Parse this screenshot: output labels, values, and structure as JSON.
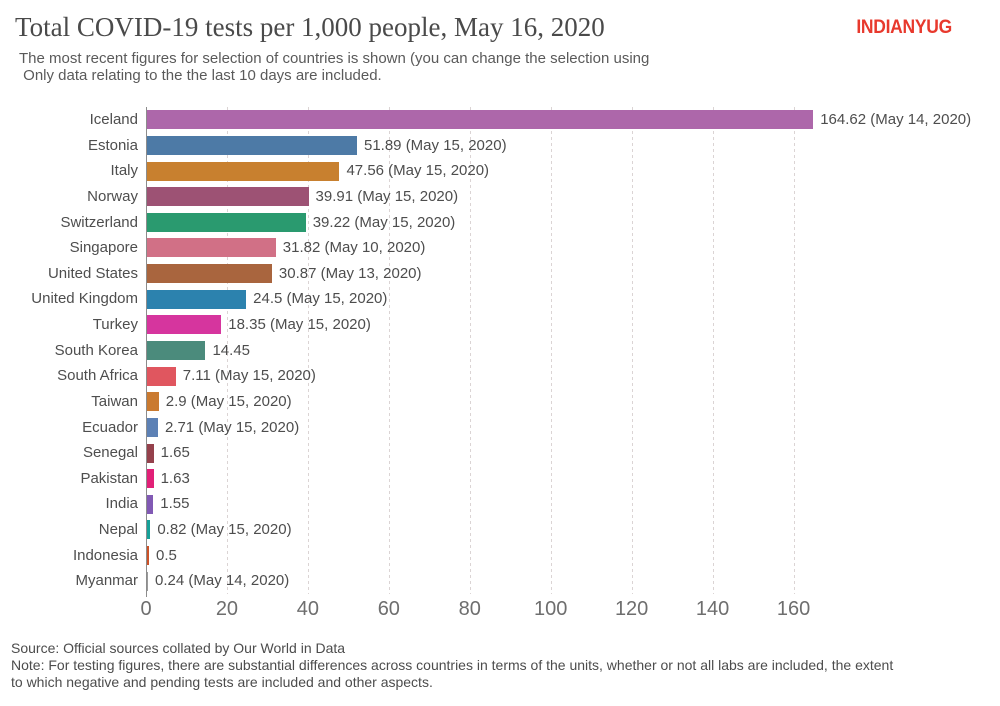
{
  "header": {
    "title": "Total COVID-19 tests per 1,000 people, May 16, 2020",
    "subtitle_line1": "The most recent figures for selection of countries is shown (you can change the selection using",
    "subtitle_line2": " Only data relating to the the last 10 days are included.",
    "logo_text": "INDIANYUG",
    "logo_color": "#e8392d"
  },
  "chart_data": {
    "type": "bar",
    "orientation": "horizontal",
    "title": "Total COVID-19 tests per 1,000 people, May 16, 2020",
    "xlabel": "",
    "ylabel": "",
    "xlim": [
      0,
      210
    ],
    "x_ticks": [
      0,
      20,
      40,
      60,
      80,
      100,
      120,
      140,
      160
    ],
    "grid": "vertical-dashed",
    "legend": "none",
    "bars": [
      {
        "country": "Iceland",
        "value": 164.62,
        "label": "164.62 (May 14, 2020)",
        "color": "#ad67aa"
      },
      {
        "country": "Estonia",
        "value": 51.89,
        "label": "51.89 (May 15, 2020)",
        "color": "#4d7aa6"
      },
      {
        "country": "Italy",
        "value": 47.56,
        "label": "47.56 (May 15, 2020)",
        "color": "#c8802f"
      },
      {
        "country": "Norway",
        "value": 39.91,
        "label": "39.91 (May 15, 2020)",
        "color": "#9d5274"
      },
      {
        "country": "Switzerland",
        "value": 39.22,
        "label": "39.22 (May 15, 2020)",
        "color": "#2a9a6f"
      },
      {
        "country": "Singapore",
        "value": 31.82,
        "label": "31.82 (May 10, 2020)",
        "color": "#d17086"
      },
      {
        "country": "United States",
        "value": 30.87,
        "label": "30.87 (May 13, 2020)",
        "color": "#a9653e"
      },
      {
        "country": "United Kingdom",
        "value": 24.5,
        "label": "24.5 (May 15, 2020)",
        "color": "#2c82ae"
      },
      {
        "country": "Turkey",
        "value": 18.35,
        "label": "18.35 (May 15, 2020)",
        "color": "#d6359e"
      },
      {
        "country": "South Korea",
        "value": 14.45,
        "label": "14.45",
        "color": "#4b8b7c"
      },
      {
        "country": "South Africa",
        "value": 7.11,
        "label": "7.11 (May 15, 2020)",
        "color": "#e0565f"
      },
      {
        "country": "Taiwan",
        "value": 2.9,
        "label": "2.9 (May 15, 2020)",
        "color": "#ca7a30"
      },
      {
        "country": "Ecuador",
        "value": 2.71,
        "label": "2.71 (May 15, 2020)",
        "color": "#5d81b5"
      },
      {
        "country": "Senegal",
        "value": 1.65,
        "label": "1.65",
        "color": "#95414c"
      },
      {
        "country": "Pakistan",
        "value": 1.63,
        "label": "1.63",
        "color": "#e12077"
      },
      {
        "country": "India",
        "value": 1.55,
        "label": "1.55",
        "color": "#8159b4"
      },
      {
        "country": "Nepal",
        "value": 0.82,
        "label": "0.82 (May 15, 2020)",
        "color": "#16a098"
      },
      {
        "country": "Indonesia",
        "value": 0.5,
        "label": "0.5",
        "color": "#cc5228"
      },
      {
        "country": "Myanmar",
        "value": 0.24,
        "label": "0.24 (May 14, 2020)",
        "color": "#9a9a9a"
      }
    ]
  },
  "footer": {
    "source": "Source: Official sources collated by Our World in Data",
    "note_line1": "Note: For testing figures, there are substantial differences across countries in terms of the units, whether or not all labs are included, the extent",
    "note_line2": "to which negative and pending tests are included and other aspects."
  }
}
